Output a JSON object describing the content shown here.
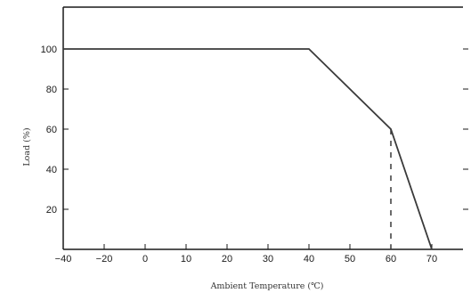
{
  "chart_data": {
    "type": "line",
    "xlabel": "Ambient Temperature (℃)",
    "ylabel": "Load (%)",
    "x_ticks": [
      "−40",
      "−20",
      "0",
      "10",
      "20",
      "30",
      "40",
      "50",
      "60",
      "70"
    ],
    "x_tick_values": [
      -40,
      -20,
      0,
      10,
      20,
      30,
      40,
      50,
      60,
      70
    ],
    "y_ticks": [
      "20",
      "40",
      "60",
      "80",
      "100"
    ],
    "y_tick_values": [
      20,
      40,
      60,
      80,
      100
    ],
    "series": [
      {
        "x": [
          -40,
          40,
          60,
          70
        ],
        "y": [
          100,
          100,
          60,
          0
        ]
      }
    ],
    "dashed_marker": {
      "x": 60,
      "y_from": 0,
      "y_to": 60
    },
    "xlim": [
      -40,
      70
    ],
    "ylim": [
      0,
      100
    ],
    "grid": false,
    "legend": "none",
    "colors": {
      "line": "#3a3a3a",
      "axis": "#1a1a1a"
    }
  }
}
